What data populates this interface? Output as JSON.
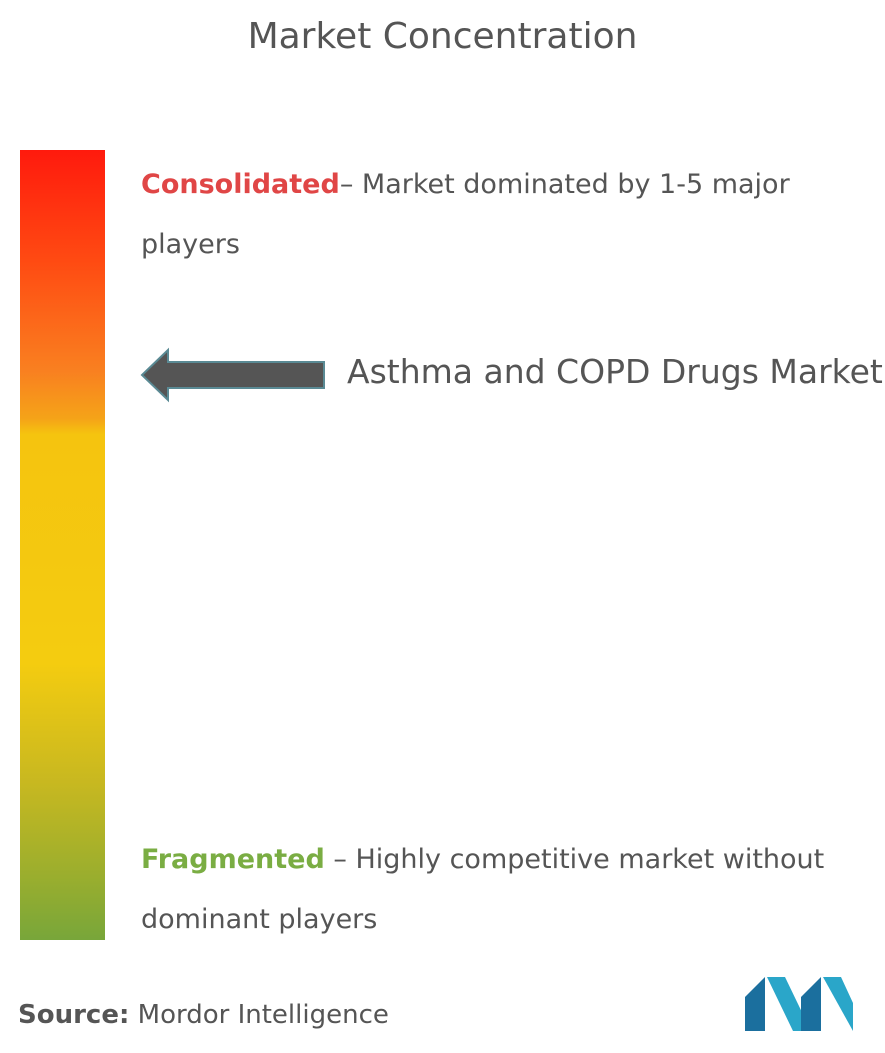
{
  "title": "Market Concentration",
  "consolidated": {
    "label": "Consolidated",
    "description": "– Market dominated by 1-5 major players"
  },
  "market": {
    "name": "Asthma and COPD Drugs Market"
  },
  "fragmented": {
    "label": "Fragmented",
    "description": " – Highly competitive market without dominant players"
  },
  "source": {
    "label": "Source:",
    "value": "Mordor Intelligence"
  }
}
